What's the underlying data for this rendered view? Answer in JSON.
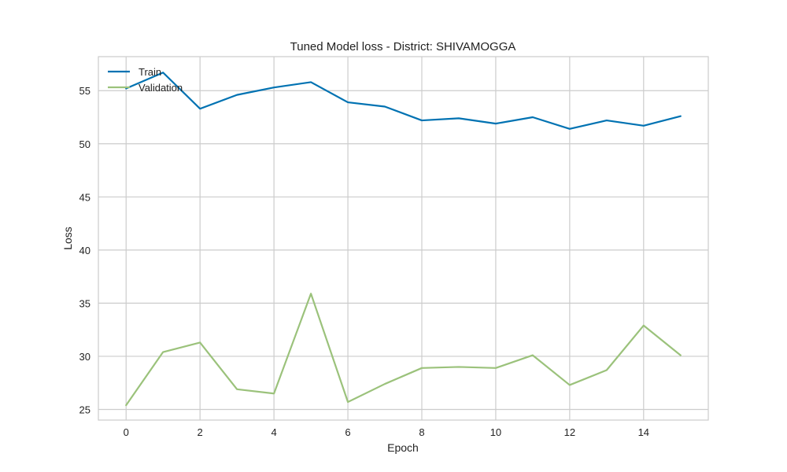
{
  "chart_data": {
    "type": "line",
    "title": "Tuned Model loss - District: SHIVAMOGGA",
    "xlabel": "Epoch",
    "ylabel": "Loss",
    "x": [
      0,
      1,
      2,
      3,
      4,
      5,
      6,
      7,
      8,
      9,
      10,
      11,
      12,
      13,
      14,
      15
    ],
    "xticks": [
      0,
      2,
      4,
      6,
      8,
      10,
      12,
      14
    ],
    "yticks": [
      25,
      30,
      35,
      40,
      45,
      50,
      55
    ],
    "xlim": [
      -0.75,
      15.75
    ],
    "ylim": [
      24.0,
      58.2
    ],
    "grid": true,
    "legend_position": "top-left",
    "series": [
      {
        "name": "Train",
        "color": "#0072B2",
        "values": [
          55.2,
          56.7,
          53.3,
          54.6,
          55.3,
          55.8,
          53.9,
          53.5,
          52.2,
          52.4,
          51.9,
          52.5,
          51.4,
          52.2,
          51.7,
          52.6
        ]
      },
      {
        "name": "Validation",
        "color": "#9BC27B",
        "values": [
          25.4,
          30.4,
          31.3,
          26.9,
          26.5,
          35.9,
          25.7,
          27.4,
          28.9,
          29.0,
          28.9,
          30.1,
          27.3,
          28.7,
          32.9,
          30.1
        ]
      }
    ]
  }
}
